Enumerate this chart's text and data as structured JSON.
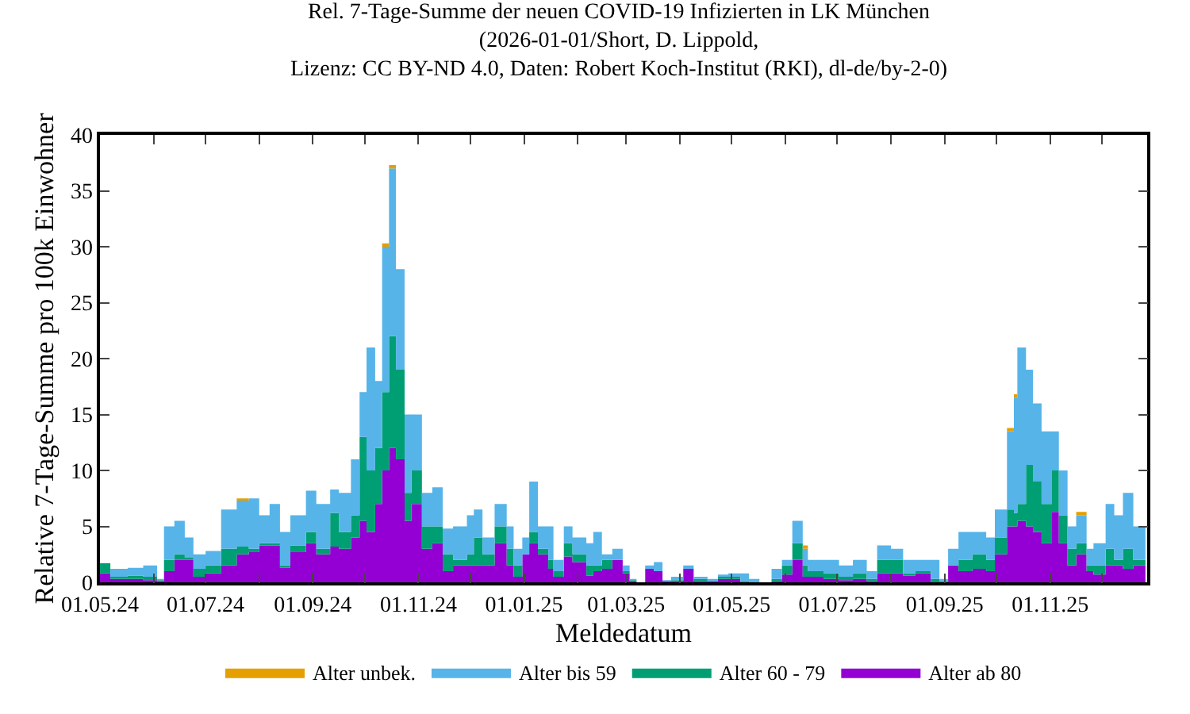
{
  "chart_data": {
    "type": "area",
    "stacked": true,
    "title": "Rel. 7-Tage-Summe der neuen COVID-19 Infizierten in LK München\n(2026-01-01/Short, D. Lippold,\nLizenz: CC BY-ND 4.0, Daten: Robert Koch-Institut (RKI), dl-de/by-2-0)",
    "xlabel": "Meldedatum",
    "ylabel": "Relative 7-Tage-Summe pro 100k Einwohner",
    "x": [
      "2024-05-01",
      "2024-05-07",
      "2024-05-17",
      "2024-05-26",
      "2024-06-03",
      "2024-06-07",
      "2024-06-13",
      "2024-06-19",
      "2024-06-24",
      "2024-07-01",
      "2024-07-10",
      "2024-07-19",
      "2024-07-26",
      "2024-08-01",
      "2024-08-07",
      "2024-08-13",
      "2024-08-19",
      "2024-08-28",
      "2024-09-03",
      "2024-09-11",
      "2024-09-16",
      "2024-09-23",
      "2024-09-28",
      "2024-10-02",
      "2024-10-07",
      "2024-10-11",
      "2024-10-15",
      "2024-10-19",
      "2024-10-24",
      "2024-10-28",
      "2024-11-03",
      "2024-11-09",
      "2024-11-15",
      "2024-11-21",
      "2024-11-29",
      "2024-12-03",
      "2024-12-08",
      "2024-12-15",
      "2024-12-22",
      "2024-12-26",
      "2024-12-31",
      "2025-01-04",
      "2025-01-09",
      "2025-01-15",
      "2025-01-18",
      "2025-01-24",
      "2025-01-29",
      "2025-02-06",
      "2025-02-10",
      "2025-02-15",
      "2025-02-21",
      "2025-02-27",
      "2025-03-03",
      "2025-03-07",
      "2025-03-12",
      "2025-03-17",
      "2025-03-22",
      "2025-03-27",
      "2025-04-03",
      "2025-04-09",
      "2025-04-17",
      "2025-04-23",
      "2025-04-29",
      "2025-05-06",
      "2025-05-11",
      "2025-05-17",
      "2025-05-24",
      "2025-05-30",
      "2025-06-05",
      "2025-06-11",
      "2025-06-14",
      "2025-06-23",
      "2025-07-02",
      "2025-07-10",
      "2025-07-18",
      "2025-07-24",
      "2025-08-01",
      "2025-08-08",
      "2025-08-15",
      "2025-08-24",
      "2025-08-29",
      "2025-09-03",
      "2025-09-09",
      "2025-09-17",
      "2025-09-25",
      "2025-09-30",
      "2025-10-07",
      "2025-10-11",
      "2025-10-13",
      "2025-10-18",
      "2025-10-22",
      "2025-10-27",
      "2025-11-02",
      "2025-11-06",
      "2025-11-11",
      "2025-11-16",
      "2025-11-22",
      "2025-11-26",
      "2025-12-03",
      "2025-12-08",
      "2025-12-13",
      "2025-12-19",
      "2025-12-26"
    ],
    "series": [
      {
        "name": "Alter ab 80",
        "color": "#9400d3",
        "values": [
          0.8,
          0.3,
          0.3,
          0.2,
          0.1,
          1,
          2,
          2,
          0.5,
          0.8,
          1.5,
          2.5,
          2.7,
          3.3,
          3.3,
          1.3,
          2.7,
          3.5,
          2.5,
          3.2,
          3,
          4,
          5.5,
          4.5,
          7,
          10,
          12,
          11,
          5.5,
          7,
          3,
          3.5,
          1,
          1.5,
          1.5,
          1.5,
          1.5,
          3.5,
          1.5,
          0.5,
          2.5,
          3.5,
          2.5,
          1.2,
          0.5,
          2.3,
          1.8,
          0.6,
          1,
          1.2,
          2,
          0.8,
          0.1,
          0,
          1.2,
          1,
          0.1,
          0.1,
          1.2,
          0.1,
          0.1,
          0.3,
          0.3,
          0,
          0,
          0,
          0.1,
          0.7,
          2,
          0.5,
          0.5,
          0.3,
          0.2,
          0.3,
          0.1,
          0.8,
          0.8,
          0.6,
          0.8,
          0,
          0,
          1.5,
          1,
          1.2,
          1,
          2.5,
          5,
          5,
          5.5,
          5,
          4.5,
          3.5,
          6.3,
          3.5,
          1.5,
          2.5,
          1,
          0.7,
          1.5,
          1.5,
          1.2,
          1.5,
          1.2
        ]
      },
      {
        "name": "Alter 60 - 79",
        "color": "#009e73",
        "values": [
          0.9,
          0.2,
          0.3,
          0.3,
          0.1,
          1,
          0.5,
          0.2,
          0.7,
          0.7,
          1.5,
          0.7,
          0.3,
          0.2,
          0.2,
          0.2,
          0.6,
          1,
          0.5,
          3,
          1.5,
          2,
          7.5,
          5.5,
          5,
          7,
          10,
          8,
          2.5,
          3,
          2,
          1.5,
          1.5,
          0.5,
          1,
          2.5,
          1,
          1.5,
          1.5,
          1,
          0,
          1,
          0.5,
          0.8,
          0.5,
          1.2,
          0.7,
          0.9,
          0.5,
          0.8,
          0,
          0.2,
          0.1,
          0,
          0,
          0,
          0,
          0.1,
          0,
          0.2,
          0,
          0.2,
          0.2,
          0.1,
          0,
          0,
          0.2,
          0.8,
          1.5,
          1,
          0.5,
          0.5,
          0.3,
          0.5,
          0.2,
          1.2,
          1.2,
          0.2,
          0.2,
          0.3,
          0.1,
          0,
          1,
          1.3,
          1,
          1.5,
          1.5,
          1.2,
          1.5,
          5.5,
          4.5,
          3.5,
          3.7,
          2.5,
          1.5,
          1,
          0.5,
          0.8,
          1.5,
          0.5,
          1.8,
          0.5,
          0.3
        ]
      },
      {
        "name": "Alter bis 59",
        "color": "#56b4e9",
        "values": [
          0,
          0.7,
          0.7,
          1,
          0.1,
          3,
          3,
          1.8,
          1.3,
          1.3,
          3.5,
          4.1,
          4.5,
          2.5,
          3.5,
          3,
          2.7,
          3.7,
          4,
          2.1,
          3.5,
          5,
          4,
          11,
          6,
          13,
          15,
          9,
          7,
          5,
          3,
          3.5,
          2.3,
          3,
          3.5,
          2.5,
          1.5,
          2,
          2,
          1.5,
          1.5,
          4.5,
          2,
          3,
          1,
          1.5,
          1.5,
          2,
          3,
          0.5,
          1,
          0.5,
          0.1,
          0,
          0.3,
          0.8,
          0.1,
          0.3,
          0.3,
          0.2,
          0.2,
          0.2,
          0.3,
          0.7,
          0.3,
          0,
          0.9,
          0.5,
          2,
          1.5,
          1,
          1.2,
          1,
          1.2,
          0.7,
          1.3,
          1,
          1.2,
          1,
          1.7,
          0.2,
          1.5,
          2.5,
          2,
          2,
          2.5,
          7,
          10.3,
          14,
          8.5,
          7,
          6.5,
          3.5,
          4,
          2,
          2.5,
          1.5,
          2,
          4,
          4,
          5,
          3,
          1
        ]
      },
      {
        "name": "Alter unbek.",
        "color": "#e69f00",
        "values": [
          0,
          0,
          0,
          0,
          0,
          0,
          0,
          0,
          0,
          0,
          0,
          0.2,
          0,
          0,
          0,
          0,
          0,
          0,
          0,
          0,
          0,
          0,
          0,
          0,
          0,
          0.3,
          0.3,
          0,
          0,
          0,
          0,
          0,
          0,
          0,
          0,
          0,
          0,
          0,
          0,
          0,
          0,
          0,
          0,
          0,
          0,
          0,
          0,
          0,
          0,
          0,
          0,
          0,
          0,
          0,
          0,
          0,
          0,
          0,
          0,
          0,
          0,
          0,
          0,
          0,
          0,
          0,
          0,
          0,
          0,
          0.3,
          0,
          0,
          0,
          0,
          0,
          0,
          0,
          0,
          0,
          0,
          0,
          0,
          0,
          0,
          0,
          0,
          0.3,
          0.3,
          0,
          0,
          0,
          0,
          0,
          0,
          0,
          0.3,
          0,
          0,
          0,
          0,
          0,
          0,
          0
        ]
      }
    ],
    "xlim": [
      "2024-05-01",
      "2025-12-27"
    ],
    "xticks": [
      {
        "value": "2024-05-01",
        "label": "01.05.24"
      },
      {
        "value": "2024-06-01",
        "label": null
      },
      {
        "value": "2024-07-01",
        "label": "01.07.24"
      },
      {
        "value": "2024-08-01",
        "label": null
      },
      {
        "value": "2024-09-01",
        "label": "01.09.24"
      },
      {
        "value": "2024-10-01",
        "label": null
      },
      {
        "value": "2024-11-01",
        "label": "01.11.24"
      },
      {
        "value": "2024-12-01",
        "label": null
      },
      {
        "value": "2025-01-01",
        "label": "01.01.25"
      },
      {
        "value": "2025-02-01",
        "label": null
      },
      {
        "value": "2025-03-01",
        "label": "01.03.25"
      },
      {
        "value": "2025-04-01",
        "label": null
      },
      {
        "value": "2025-05-01",
        "label": "01.05.25"
      },
      {
        "value": "2025-06-01",
        "label": null
      },
      {
        "value": "2025-07-01",
        "label": "01.07.25"
      },
      {
        "value": "2025-08-01",
        "label": null
      },
      {
        "value": "2025-09-01",
        "label": "01.09.25"
      },
      {
        "value": "2025-10-01",
        "label": null
      },
      {
        "value": "2025-11-01",
        "label": "01.11.25"
      },
      {
        "value": "2025-12-01",
        "label": null
      }
    ],
    "ylim": [
      0,
      40
    ],
    "yticks": [
      0,
      5,
      10,
      15,
      20,
      25,
      30,
      35,
      40
    ],
    "legend": "bottom"
  }
}
